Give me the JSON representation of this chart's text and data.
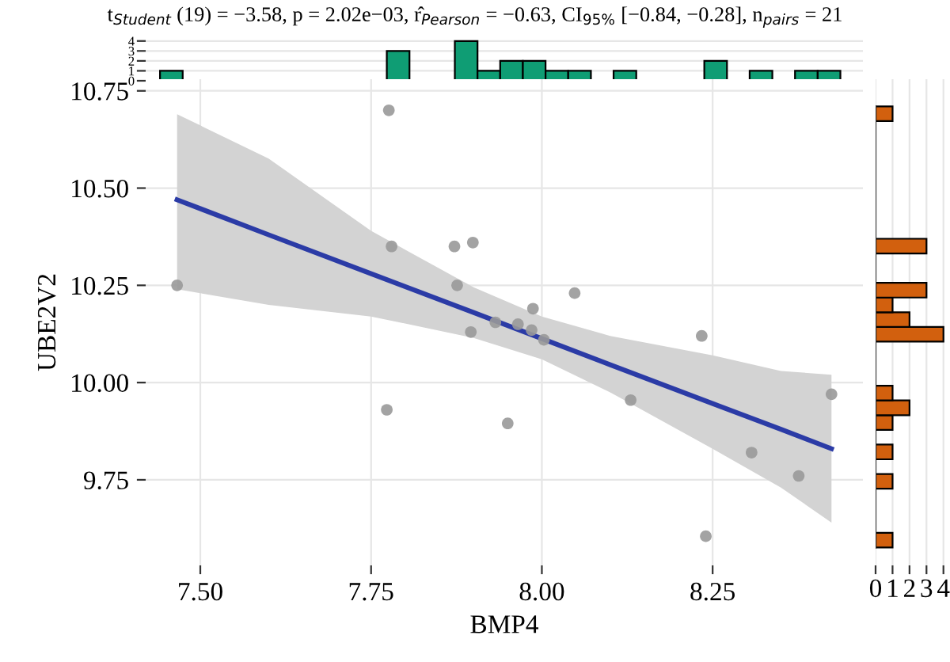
{
  "chart_data": [
    {
      "type": "histogram",
      "title": "t$_{Student}$ (19) = −3.58, p = 2.02e−03, r̂$_{Pearson}$ = −0.63, CI$_{95%}$ [−0.84, −0.28], n$_{pairs}$ = 21",
      "color": "#0f9d74",
      "bins": [
        7.441,
        7.4742,
        7.5074,
        7.5406,
        7.5738,
        7.607,
        7.6402,
        7.6734,
        7.7066,
        7.7398,
        7.773,
        7.8062,
        7.8394,
        7.8726,
        7.9058,
        7.939,
        7.9722,
        8.0054,
        8.0386,
        8.0718,
        8.105,
        8.1382,
        8.1714,
        8.2046,
        8.2378,
        8.271,
        8.3042,
        8.3374,
        8.3706,
        8.4038,
        8.437
      ],
      "values": [
        1,
        0,
        0,
        0,
        0,
        0,
        0,
        0,
        0,
        0,
        3,
        0,
        0,
        4,
        1,
        2,
        2,
        1,
        1,
        0,
        1,
        0,
        0,
        0,
        2,
        0,
        1,
        0,
        1,
        1
      ],
      "xlim": [
        7.42,
        8.47
      ],
      "ylim": [
        0,
        4.3
      ],
      "yticks": [
        0,
        1,
        2,
        3,
        4
      ],
      "tick_labels": "y",
      "grid": true
    },
    {
      "type": "scatter",
      "xlabel": "BMP4",
      "ylabel": "UBE2V2",
      "grid": true,
      "xlim": [
        7.42,
        8.47
      ],
      "ylim": [
        9.53,
        10.78
      ],
      "xticks": [
        {
          "value": 7.5,
          "label": "7.50"
        },
        {
          "value": 7.75,
          "label": "7.75"
        },
        {
          "value": 8.0,
          "label": "8.00"
        },
        {
          "value": 8.25,
          "label": "8.25"
        }
      ],
      "yticks": [
        {
          "value": 9.75,
          "label": "9.75"
        },
        {
          "value": 10.0,
          "label": "10.00"
        },
        {
          "value": 10.25,
          "label": "10.25"
        },
        {
          "value": 10.5,
          "label": "10.50"
        },
        {
          "value": 10.75,
          "label": "10.75"
        }
      ],
      "series": [
        {
          "type": "scatter",
          "marker": "circle",
          "color": "#999999",
          "x": [
            7.466,
            7.776,
            7.78,
            7.872,
            7.899,
            7.876,
            8.048,
            7.987,
            7.896,
            7.932,
            7.965,
            7.985,
            8.003,
            8.234,
            8.424,
            8.13,
            7.773,
            7.95,
            8.307,
            8.376,
            8.24
          ],
          "values": [
            10.25,
            10.7,
            10.35,
            10.35,
            10.36,
            10.25,
            10.23,
            10.19,
            10.13,
            10.155,
            10.15,
            10.135,
            10.11,
            10.12,
            9.97,
            9.955,
            9.93,
            9.895,
            9.82,
            9.76,
            9.605
          ]
        },
        {
          "type": "line",
          "color": "#2b3ba6",
          "x": [
            7.466,
            7.6,
            7.75,
            7.9,
            8.0,
            8.1,
            8.25,
            8.35,
            8.424
          ],
          "values": [
            10.47,
            10.38,
            10.28,
            10.18,
            10.113,
            10.046,
            9.946,
            9.88,
            9.83
          ],
          "lower": [
            10.24,
            10.2,
            10.17,
            10.115,
            10.06,
            9.975,
            9.83,
            9.73,
            9.64
          ],
          "upper": [
            10.69,
            10.576,
            10.39,
            10.245,
            10.17,
            10.12,
            10.07,
            10.03,
            10.02
          ]
        }
      ]
    },
    {
      "type": "histogram",
      "orientation": "horizontal",
      "color": "#d2600e",
      "bins": [
        9.576,
        9.6138,
        9.6516,
        9.6894,
        9.7272,
        9.765,
        9.8028,
        9.8406,
        9.8784,
        9.9162,
        9.954,
        9.9918,
        10.0296,
        10.0674,
        10.1052,
        10.143,
        10.1808,
        10.2186,
        10.2564,
        10.2942,
        10.332,
        10.3698,
        10.4076,
        10.4454,
        10.4832,
        10.521,
        10.5588,
        10.5966,
        10.6344,
        10.6722,
        10.71
      ],
      "values": [
        1,
        0,
        0,
        0,
        1,
        0,
        1,
        0,
        1,
        2,
        1,
        0,
        0,
        0,
        4,
        2,
        1,
        3,
        0,
        0,
        3,
        0,
        0,
        0,
        0,
        0,
        0,
        0,
        0,
        1
      ],
      "xlim": [
        0,
        4.2
      ],
      "ylim": [
        9.53,
        10.78
      ],
      "xticks": [
        0,
        1,
        2,
        3,
        4
      ],
      "tick_labels": "x",
      "grid": true
    }
  ]
}
